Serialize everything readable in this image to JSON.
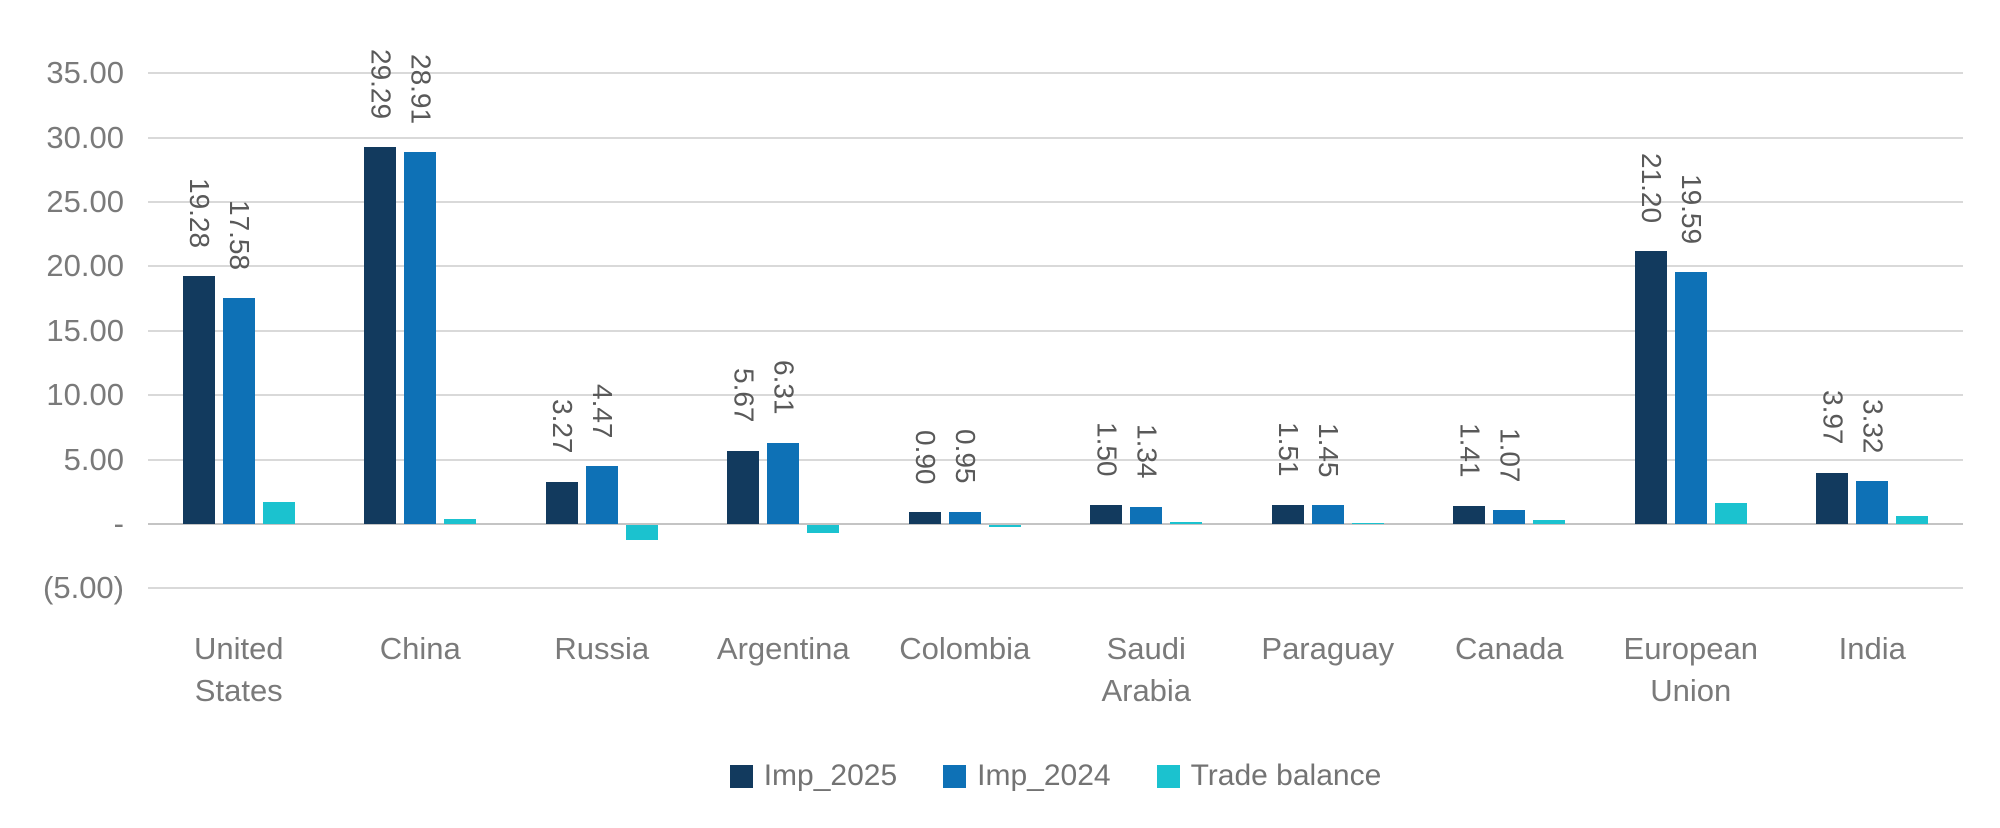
{
  "chart_data": {
    "type": "bar",
    "title": "",
    "categories": [
      "United States",
      "China",
      "Russia",
      "Argentina",
      "Colombia",
      "Saudi Arabia",
      "Paraguay",
      "Canada",
      "European Union",
      "India"
    ],
    "series": [
      {
        "name": "Imp_2025",
        "color": "#123A5E",
        "show_labels": true,
        "values": [
          19.28,
          29.29,
          3.27,
          5.67,
          0.9,
          1.5,
          1.51,
          1.41,
          21.2,
          3.97
        ]
      },
      {
        "name": "Imp_2024",
        "color": "#0E71B6",
        "show_labels": true,
        "values": [
          17.58,
          28.91,
          4.47,
          6.31,
          0.95,
          1.34,
          1.45,
          1.07,
          19.59,
          3.32
        ]
      },
      {
        "name": "Trade balance",
        "color": "#1BC2CF",
        "show_labels": false,
        "values": [
          1.7,
          0.38,
          -1.2,
          -0.64,
          -0.05,
          0.16,
          0.06,
          0.34,
          1.61,
          0.65
        ]
      }
    ],
    "y_axis": {
      "min": -5,
      "max": 35,
      "step": 5,
      "ticks": [
        {
          "value": 35,
          "label": "35.00"
        },
        {
          "value": 30,
          "label": "30.00"
        },
        {
          "value": 25,
          "label": "25.00"
        },
        {
          "value": 20,
          "label": "20.00"
        },
        {
          "value": 15,
          "label": "15.00"
        },
        {
          "value": 10,
          "label": "10.00"
        },
        {
          "value": 5,
          "label": "5.00"
        },
        {
          "value": 0,
          "label": "-"
        },
        {
          "value": -5,
          "label": "(5.00)"
        }
      ]
    },
    "xlabel": "",
    "ylabel": "",
    "grid": true,
    "legend_position": "bottom",
    "data_label_format": "0.00",
    "data_label_rotation": "vertical"
  },
  "colors": {
    "background": "#FFFFFF",
    "gridline": "#D9D9D9",
    "zero_line": "#C4C4C4",
    "axis_text": "#7A7A7A",
    "data_label_text": "#595959",
    "series_imp_2025": "#123A5E",
    "series_imp_2024": "#0E71B6",
    "series_trade_balance": "#1BC2CF"
  }
}
